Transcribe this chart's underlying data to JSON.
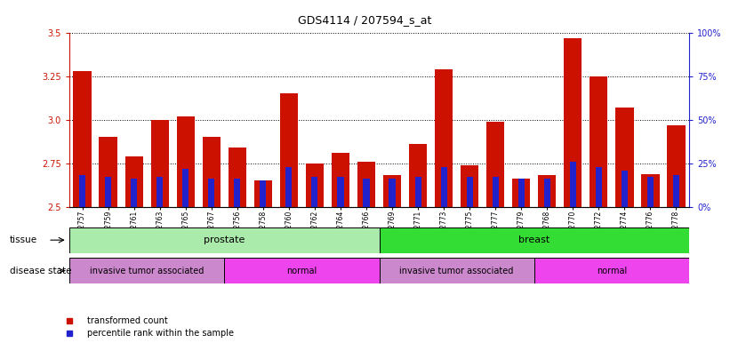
{
  "title": "GDS4114 / 207594_s_at",
  "samples": [
    "GSM662757",
    "GSM662759",
    "GSM662761",
    "GSM662763",
    "GSM662765",
    "GSM662767",
    "GSM662756",
    "GSM662758",
    "GSM662760",
    "GSM662762",
    "GSM662764",
    "GSM662766",
    "GSM662769",
    "GSM662771",
    "GSM662773",
    "GSM662775",
    "GSM662777",
    "GSM662779",
    "GSM662768",
    "GSM662770",
    "GSM662772",
    "GSM662774",
    "GSM662776",
    "GSM662778"
  ],
  "red_values": [
    3.28,
    2.9,
    2.79,
    3.0,
    3.02,
    2.9,
    2.84,
    2.65,
    3.15,
    2.75,
    2.81,
    2.76,
    2.68,
    2.86,
    3.29,
    2.74,
    2.99,
    2.66,
    2.68,
    3.47,
    3.25,
    3.07,
    2.69,
    2.97
  ],
  "blue_values": [
    2.68,
    2.67,
    2.66,
    2.67,
    2.72,
    2.66,
    2.66,
    2.65,
    2.73,
    2.67,
    2.67,
    2.66,
    2.66,
    2.67,
    2.73,
    2.67,
    2.67,
    2.66,
    2.66,
    2.76,
    2.73,
    2.71,
    2.67,
    2.68
  ],
  "ylim_left": [
    2.5,
    3.5
  ],
  "yticks_left": [
    2.5,
    2.75,
    3.0,
    3.25,
    3.5
  ],
  "ylim_right": [
    0,
    100
  ],
  "yticks_right": [
    0,
    25,
    50,
    75,
    100
  ],
  "tissue_groups": [
    {
      "label": "prostate",
      "start": 0,
      "end": 11,
      "color": "#aaeaaa"
    },
    {
      "label": "breast",
      "start": 12,
      "end": 23,
      "color": "#33dd33"
    }
  ],
  "disease_groups": [
    {
      "label": "invasive tumor associated",
      "start": 0,
      "end": 5,
      "color": "#cc88cc"
    },
    {
      "label": "normal",
      "start": 6,
      "end": 11,
      "color": "#ee44ee"
    },
    {
      "label": "invasive tumor associated",
      "start": 12,
      "end": 17,
      "color": "#cc88cc"
    },
    {
      "label": "normal",
      "start": 18,
      "end": 23,
      "color": "#ee44ee"
    }
  ],
  "bar_color_red": "#cc1100",
  "bar_color_blue": "#2222cc",
  "bar_width": 0.7,
  "grid_color": "black",
  "grid_linestyle": "dotted",
  "legend_items": [
    {
      "label": "transformed count",
      "color": "#cc1100"
    },
    {
      "label": "percentile rank within the sample",
      "color": "#2222cc"
    }
  ],
  "left_axis_color": "#cc1100",
  "right_axis_color": "#2222cc"
}
